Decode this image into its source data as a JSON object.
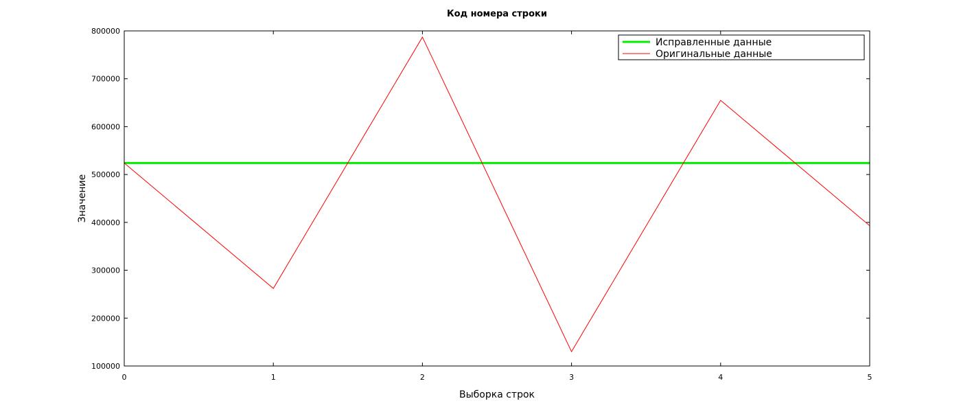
{
  "chart_data": {
    "type": "line",
    "title": "Код номера строки",
    "xlabel": "Выборка строк",
    "ylabel": "Значение",
    "x": [
      0,
      1,
      2,
      3,
      4,
      5
    ],
    "xlim": [
      0,
      5
    ],
    "ylim": [
      100000,
      800000
    ],
    "xticks": [
      "0",
      "1",
      "2",
      "3",
      "4",
      "5"
    ],
    "yticks": [
      "100000",
      "200000",
      "300000",
      "400000",
      "500000",
      "600000",
      "700000",
      "800000"
    ],
    "grid": false,
    "legend_position": "top-right",
    "series": [
      {
        "name": "Исправленные данные",
        "color": "#00ee00",
        "values": [
          524000,
          524000,
          524000,
          524000,
          524000,
          524000
        ]
      },
      {
        "name": "Оригинальные данные",
        "color": "#ff0000",
        "values": [
          524000,
          262000,
          787000,
          130000,
          655000,
          393000
        ]
      }
    ]
  }
}
